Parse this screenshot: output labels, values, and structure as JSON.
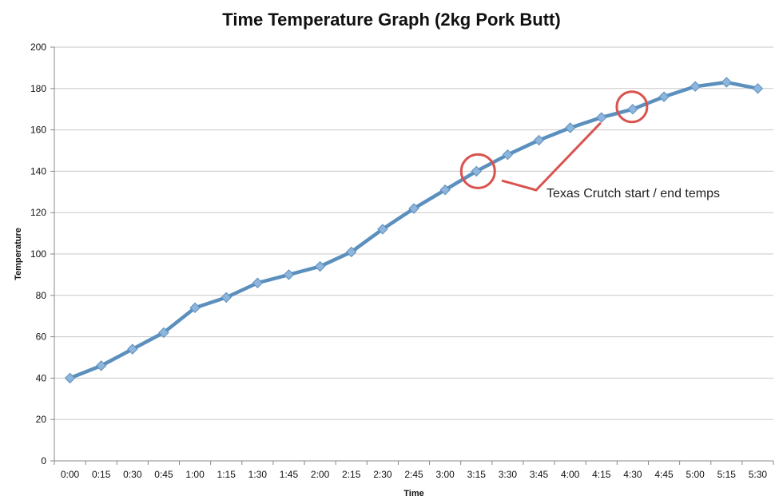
{
  "chart_data": {
    "type": "line",
    "title": "Time Temperature Graph (2kg Pork Butt)",
    "xlabel": "Time",
    "ylabel": "Temperature",
    "ylim": [
      0,
      200
    ],
    "yticks": [
      0,
      20,
      40,
      60,
      80,
      100,
      120,
      140,
      160,
      180,
      200
    ],
    "grid": true,
    "legend": "none",
    "categories": [
      "0:00",
      "0:15",
      "0:30",
      "0:45",
      "1:00",
      "1:15",
      "1:30",
      "1:45",
      "2:00",
      "2:15",
      "2:30",
      "2:45",
      "3:00",
      "3:15",
      "3:30",
      "3:45",
      "4:00",
      "4:15",
      "4:30",
      "4:45",
      "5:00",
      "5:15",
      "5:30"
    ],
    "series": [
      {
        "values": [
          40,
          46,
          54,
          62,
          74,
          79,
          86,
          90,
          94,
          101,
          112,
          122,
          131,
          140,
          148,
          155,
          161,
          166,
          170,
          176,
          181,
          183,
          180
        ],
        "color": "#5b8fbd",
        "marker_color": "#8eb6dc"
      }
    ],
    "annotation": {
      "text": "Texas Crutch start / end temps",
      "points": [
        "3:15",
        "4:30"
      ],
      "color": "#d9534f"
    }
  }
}
